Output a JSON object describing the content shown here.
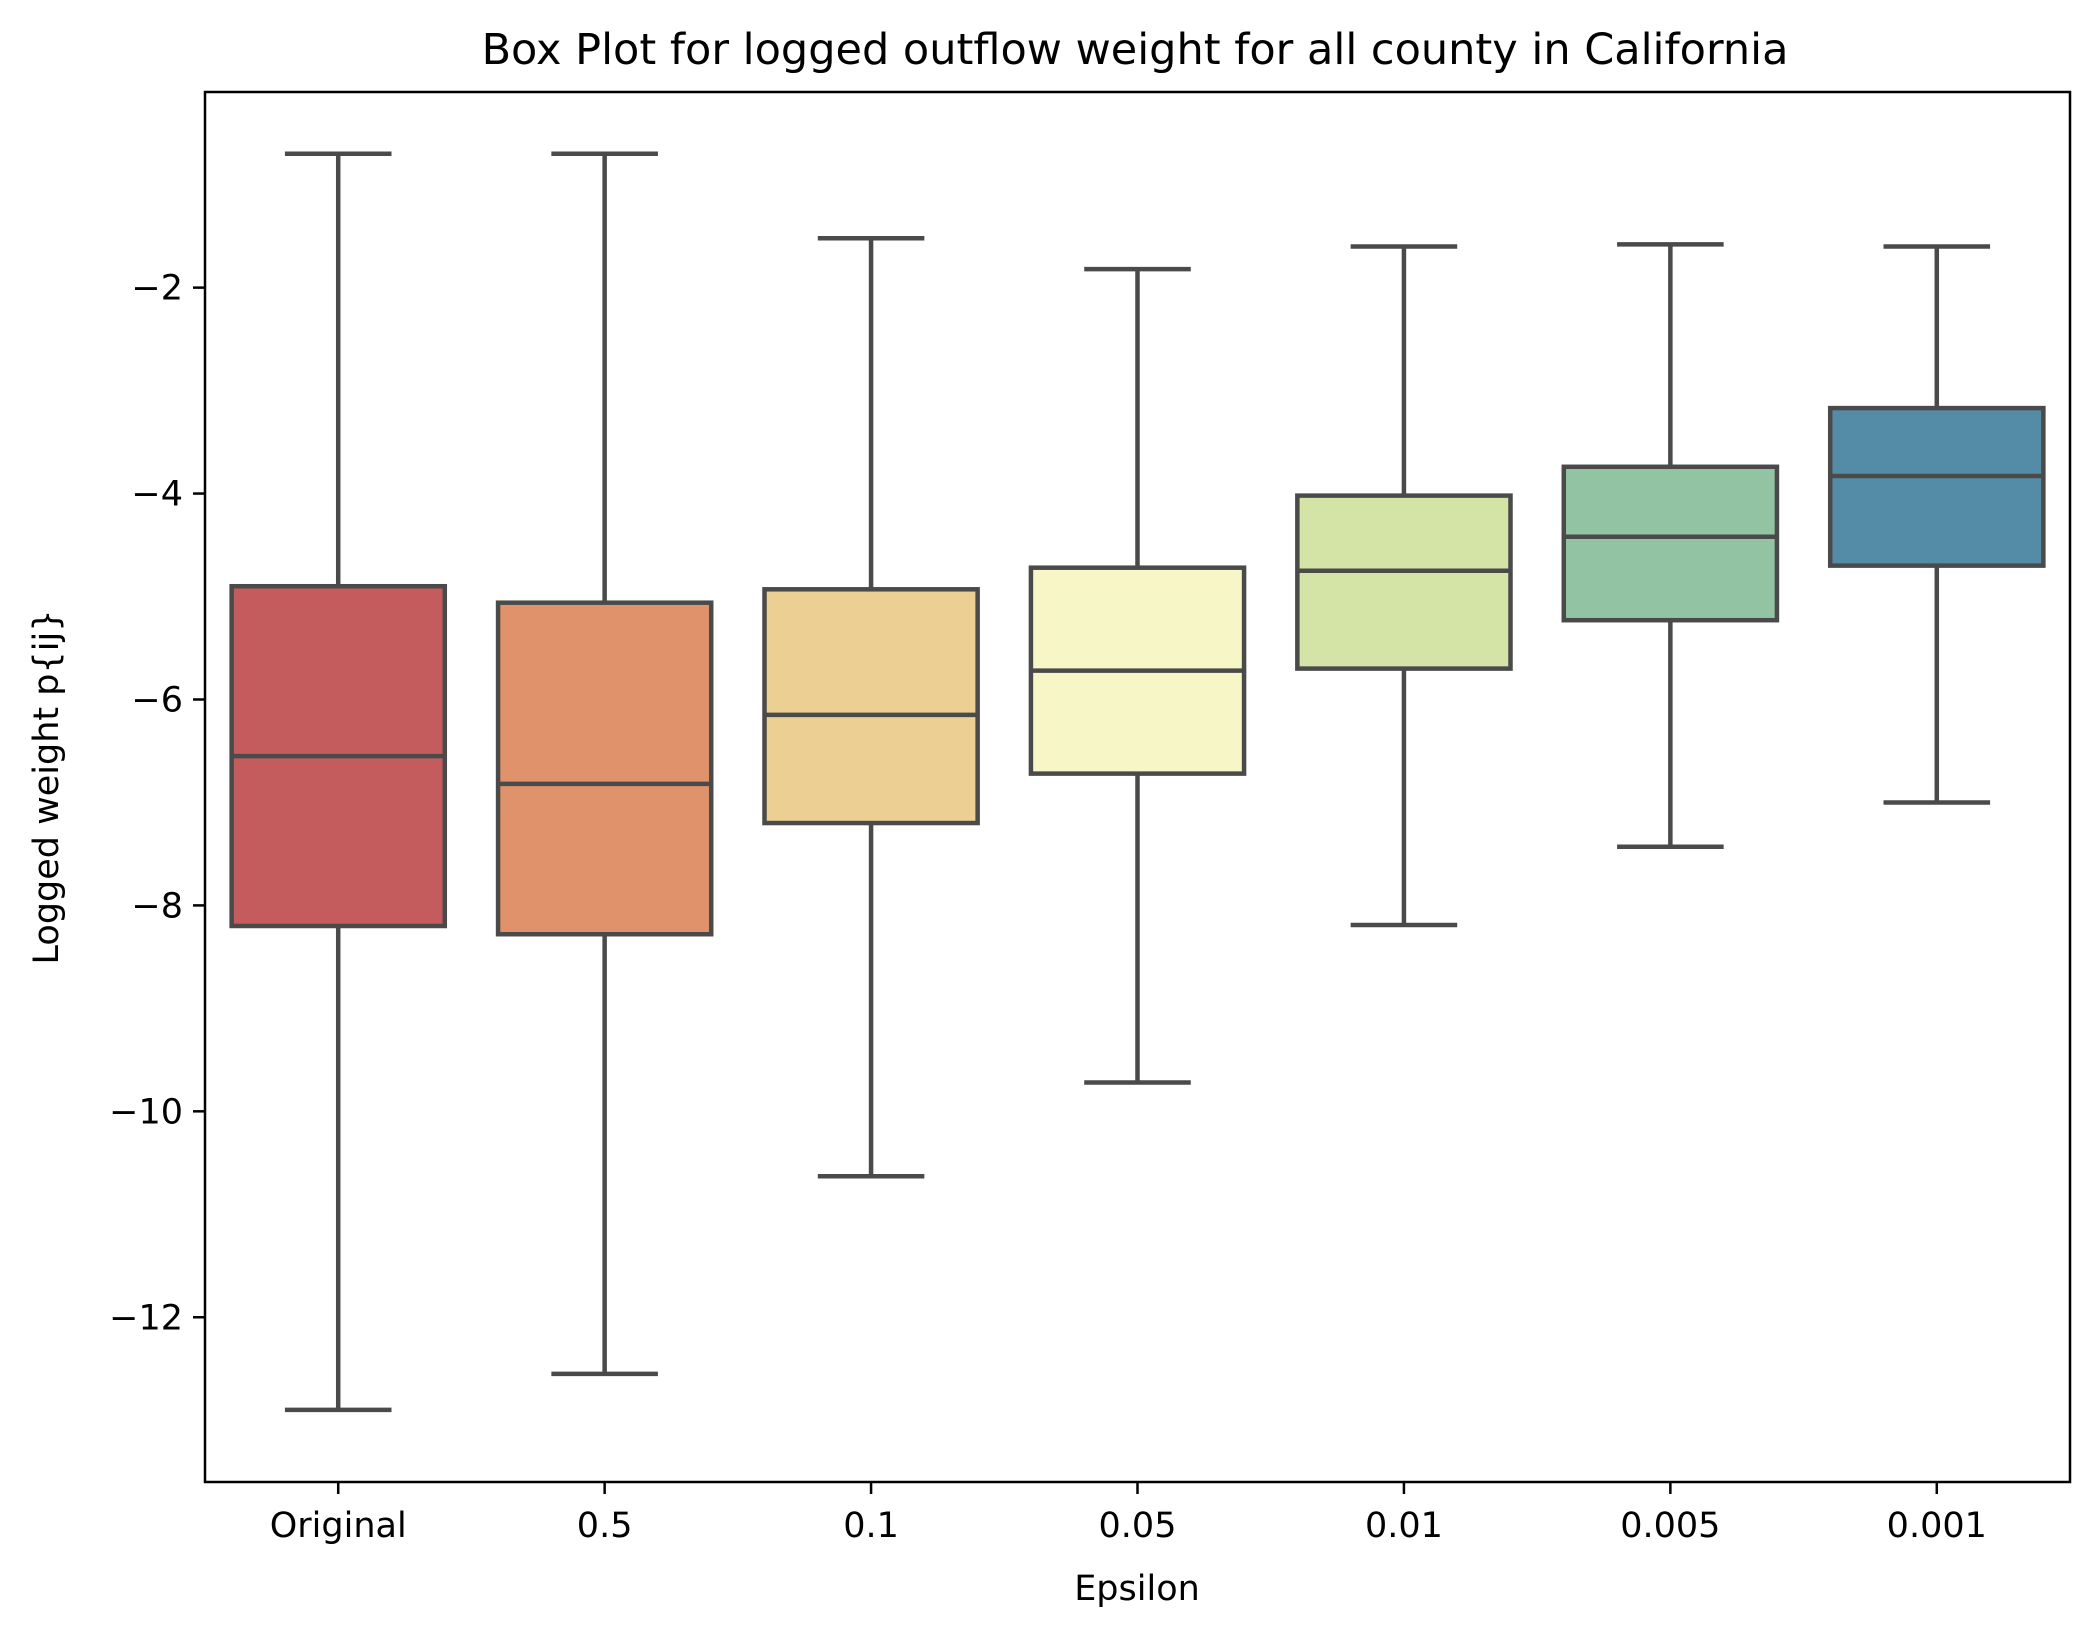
{
  "chart_data": {
    "type": "box",
    "title": "Box Plot for logged outflow weight for all county in California",
    "xlabel": "Epsilon",
    "ylabel": "Logged weight p{ij}",
    "ylim": [
      -13.6,
      -0.1
    ],
    "yticks": [
      -2,
      -4,
      -6,
      -8,
      -10,
      -12
    ],
    "ytick_labels": [
      "−2",
      "−4",
      "−6",
      "−8",
      "−10",
      "−12"
    ],
    "grid": false,
    "categories": [
      "Original",
      "0.5",
      "0.1",
      "0.05",
      "0.01",
      "0.005",
      "0.001"
    ],
    "boxes": [
      {
        "label": "Original",
        "whisker_low": -12.9,
        "q1": -8.2,
        "median": -6.55,
        "q3": -4.9,
        "whisker_high": -0.7,
        "color": "#c45c5d"
      },
      {
        "label": "0.5",
        "whisker_low": -12.55,
        "q1": -8.28,
        "median": -6.82,
        "q3": -5.06,
        "whisker_high": -0.7,
        "color": "#e0936a"
      },
      {
        "label": "0.1",
        "whisker_low": -10.63,
        "q1": -7.2,
        "median": -6.15,
        "q3": -4.93,
        "whisker_high": -1.52,
        "color": "#eccf93"
      },
      {
        "label": "0.05",
        "whisker_low": -9.72,
        "q1": -6.72,
        "median": -5.72,
        "q3": -4.72,
        "whisker_high": -1.82,
        "color": "#f7f6c6"
      },
      {
        "label": "0.01",
        "whisker_low": -8.19,
        "q1": -5.7,
        "median": -4.75,
        "q3": -4.02,
        "whisker_high": -1.6,
        "color": "#d4e4a7"
      },
      {
        "label": "0.005",
        "whisker_low": -7.43,
        "q1": -5.23,
        "median": -4.42,
        "q3": -3.74,
        "whisker_high": -1.58,
        "color": "#92c4a3"
      },
      {
        "label": "0.001",
        "whisker_low": -7.0,
        "q1": -4.7,
        "median": -3.83,
        "q3": -3.17,
        "whisker_high": -1.6,
        "color": "#548ca8"
      }
    ]
  }
}
